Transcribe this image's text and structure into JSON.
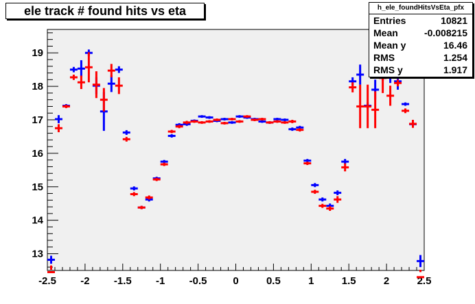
{
  "colors": {
    "series1": "#0000ff",
    "series2": "#ff0000",
    "frame": "#f0f0f0"
  },
  "title": "ele track # found hits vs eta",
  "stats": {
    "name": "h_ele_foundHitsVsEta_pfx",
    "rows": [
      {
        "label": "Entries",
        "value": "10821"
      },
      {
        "label": "Mean",
        "value": "-0.008215"
      },
      {
        "label": "Mean y",
        "value": "16.46"
      },
      {
        "label": "RMS",
        "value": "1.254"
      },
      {
        "label": "RMS y",
        "value": "1.917"
      }
    ]
  },
  "chart_data": {
    "type": "scatter",
    "title": "ele track # found hits vs eta",
    "xlabel": "",
    "ylabel": "",
    "xlim": [
      -2.5,
      2.5
    ],
    "ylim": [
      12.5,
      19.7
    ],
    "grid": false,
    "x_ticks": [
      -2.5,
      -2,
      -1.5,
      -1,
      -0.5,
      0,
      0.5,
      1,
      1.5,
      2,
      2.5
    ],
    "x_tick_labels": [
      "-2.5",
      "-2",
      "-1.5",
      "-1",
      "-0.5",
      "0",
      "0.5",
      "1",
      "1.5",
      "2",
      "2.5"
    ],
    "y_ticks": [
      13,
      14,
      15,
      16,
      17,
      18,
      19
    ],
    "y_tick_labels": [
      "13",
      "14",
      "15",
      "16",
      "17",
      "18",
      "19"
    ],
    "x_halfwidth": 0.05,
    "series": [
      {
        "color": "#0000ff",
        "points": [
          {
            "x": -2.45,
            "y": 12.82,
            "err": 0.12
          },
          {
            "x": -2.35,
            "y": 17.02,
            "err": 0.12
          },
          {
            "x": -2.25,
            "y": 17.42,
            "err": 0.05
          },
          {
            "x": -2.15,
            "y": 18.5,
            "err": 0.08
          },
          {
            "x": -2.05,
            "y": 18.53,
            "err": 0.25
          },
          {
            "x": -1.95,
            "y": 19.0,
            "err": 0.1
          },
          {
            "x": -1.85,
            "y": 18.02,
            "err": 0.25
          },
          {
            "x": -1.75,
            "y": 17.25,
            "err": 0.58
          },
          {
            "x": -1.65,
            "y": 18.08,
            "err": 0.25
          },
          {
            "x": -1.55,
            "y": 18.5,
            "err": 0.1
          },
          {
            "x": -1.45,
            "y": 16.62,
            "err": 0.07
          },
          {
            "x": -1.35,
            "y": 14.95,
            "err": 0.06
          },
          {
            "x": -1.25,
            "y": 14.38,
            "err": 0.05
          },
          {
            "x": -1.15,
            "y": 14.62,
            "err": 0.06
          },
          {
            "x": -1.05,
            "y": 15.25,
            "err": 0.05
          },
          {
            "x": -0.95,
            "y": 15.75,
            "err": 0.05
          },
          {
            "x": -0.85,
            "y": 16.52,
            "err": 0.05
          },
          {
            "x": -0.75,
            "y": 16.85,
            "err": 0.05
          },
          {
            "x": -0.65,
            "y": 16.87,
            "err": 0.05
          },
          {
            "x": -0.55,
            "y": 16.97,
            "err": 0.04
          },
          {
            "x": -0.45,
            "y": 17.1,
            "err": 0.04
          },
          {
            "x": -0.35,
            "y": 17.07,
            "err": 0.04
          },
          {
            "x": -0.25,
            "y": 16.97,
            "err": 0.04
          },
          {
            "x": -0.15,
            "y": 17.02,
            "err": 0.04
          },
          {
            "x": -0.05,
            "y": 16.92,
            "err": 0.04
          },
          {
            "x": 0.05,
            "y": 17.1,
            "err": 0.04
          },
          {
            "x": 0.15,
            "y": 17.07,
            "err": 0.04
          },
          {
            "x": 0.25,
            "y": 17.02,
            "err": 0.04
          },
          {
            "x": 0.35,
            "y": 16.95,
            "err": 0.04
          },
          {
            "x": 0.45,
            "y": 16.92,
            "err": 0.04
          },
          {
            "x": 0.55,
            "y": 17.02,
            "err": 0.04
          },
          {
            "x": 0.65,
            "y": 17.0,
            "err": 0.04
          },
          {
            "x": 0.75,
            "y": 16.72,
            "err": 0.05
          },
          {
            "x": 0.85,
            "y": 16.77,
            "err": 0.05
          },
          {
            "x": 0.95,
            "y": 15.78,
            "err": 0.05
          },
          {
            "x": 1.05,
            "y": 15.05,
            "err": 0.06
          },
          {
            "x": 1.15,
            "y": 14.62,
            "err": 0.06
          },
          {
            "x": 1.25,
            "y": 14.43,
            "err": 0.07
          },
          {
            "x": 1.35,
            "y": 14.82,
            "err": 0.07
          },
          {
            "x": 1.45,
            "y": 15.75,
            "err": 0.08
          },
          {
            "x": 1.55,
            "y": 18.15,
            "err": 0.12
          },
          {
            "x": 1.65,
            "y": 18.35,
            "err": 0.3
          },
          {
            "x": 1.75,
            "y": 17.42,
            "err": 0.1
          },
          {
            "x": 1.85,
            "y": 17.9,
            "err": 0.3
          },
          {
            "x": 1.95,
            "y": 18.42,
            "err": 0.25
          },
          {
            "x": 2.05,
            "y": 18.35,
            "err": 0.25
          },
          {
            "x": 2.15,
            "y": 18.15,
            "err": 0.25
          },
          {
            "x": 2.25,
            "y": 17.47,
            "err": 0.05
          },
          {
            "x": 2.35,
            "y": 16.87,
            "err": 0.06
          },
          {
            "x": 2.45,
            "y": 12.78,
            "err": 0.18
          }
        ]
      },
      {
        "color": "#ff0000",
        "points": [
          {
            "x": -2.45,
            "y": 12.45,
            "err": 0.2
          },
          {
            "x": -2.35,
            "y": 16.75,
            "err": 0.12
          },
          {
            "x": -2.25,
            "y": 17.4,
            "err": 0.05
          },
          {
            "x": -2.15,
            "y": 18.27,
            "err": 0.08
          },
          {
            "x": -2.05,
            "y": 18.12,
            "err": 0.2
          },
          {
            "x": -1.95,
            "y": 18.57,
            "err": 0.45
          },
          {
            "x": -1.85,
            "y": 18.05,
            "err": 0.4
          },
          {
            "x": -1.75,
            "y": 17.6,
            "err": 0.35
          },
          {
            "x": -1.65,
            "y": 18.47,
            "err": 0.2
          },
          {
            "x": -1.55,
            "y": 18.02,
            "err": 0.25
          },
          {
            "x": -1.45,
            "y": 16.42,
            "err": 0.07
          },
          {
            "x": -1.35,
            "y": 14.78,
            "err": 0.06
          },
          {
            "x": -1.25,
            "y": 14.38,
            "err": 0.05
          },
          {
            "x": -1.15,
            "y": 14.68,
            "err": 0.06
          },
          {
            "x": -1.05,
            "y": 15.22,
            "err": 0.05
          },
          {
            "x": -0.95,
            "y": 15.67,
            "err": 0.05
          },
          {
            "x": -0.85,
            "y": 16.65,
            "err": 0.05
          },
          {
            "x": -0.75,
            "y": 16.8,
            "err": 0.05
          },
          {
            "x": -0.65,
            "y": 16.92,
            "err": 0.05
          },
          {
            "x": -0.55,
            "y": 16.95,
            "err": 0.04
          },
          {
            "x": -0.45,
            "y": 16.92,
            "err": 0.04
          },
          {
            "x": -0.35,
            "y": 16.95,
            "err": 0.04
          },
          {
            "x": -0.25,
            "y": 17.0,
            "err": 0.04
          },
          {
            "x": -0.15,
            "y": 16.9,
            "err": 0.04
          },
          {
            "x": -0.05,
            "y": 17.02,
            "err": 0.04
          },
          {
            "x": 0.05,
            "y": 16.95,
            "err": 0.04
          },
          {
            "x": 0.15,
            "y": 17.1,
            "err": 0.04
          },
          {
            "x": 0.25,
            "y": 17.0,
            "err": 0.04
          },
          {
            "x": 0.35,
            "y": 17.02,
            "err": 0.04
          },
          {
            "x": 0.45,
            "y": 16.92,
            "err": 0.04
          },
          {
            "x": 0.55,
            "y": 16.95,
            "err": 0.04
          },
          {
            "x": 0.65,
            "y": 16.92,
            "err": 0.04
          },
          {
            "x": 0.75,
            "y": 16.95,
            "err": 0.05
          },
          {
            "x": 0.85,
            "y": 16.7,
            "err": 0.05
          },
          {
            "x": 0.95,
            "y": 15.7,
            "err": 0.05
          },
          {
            "x": 1.05,
            "y": 14.85,
            "err": 0.06
          },
          {
            "x": 1.15,
            "y": 14.43,
            "err": 0.06
          },
          {
            "x": 1.25,
            "y": 14.35,
            "err": 0.07
          },
          {
            "x": 1.35,
            "y": 14.62,
            "err": 0.1
          },
          {
            "x": 1.45,
            "y": 15.58,
            "err": 0.12
          },
          {
            "x": 1.55,
            "y": 17.97,
            "err": 0.15
          },
          {
            "x": 1.65,
            "y": 17.4,
            "err": 0.65
          },
          {
            "x": 1.75,
            "y": 17.4,
            "err": 0.65
          },
          {
            "x": 1.85,
            "y": 17.3,
            "err": 0.55
          },
          {
            "x": 1.95,
            "y": 18.25,
            "err": 0.45
          },
          {
            "x": 2.05,
            "y": 17.72,
            "err": 0.3
          },
          {
            "x": 2.15,
            "y": 18.1,
            "err": 0.1
          },
          {
            "x": 2.25,
            "y": 17.27,
            "err": 0.07
          },
          {
            "x": 2.35,
            "y": 16.88,
            "err": 0.12
          },
          {
            "x": 2.45,
            "y": 12.3,
            "err": 0.15
          }
        ]
      }
    ]
  }
}
